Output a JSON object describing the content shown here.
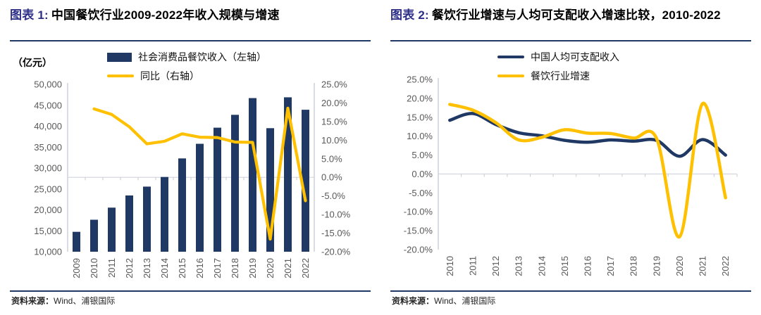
{
  "colors": {
    "navy": "#1F3864",
    "yellow": "#FFC000",
    "title_accent": "#2D2E87",
    "axis_text": "#595959",
    "gridline": "#D6D9E0",
    "axis_line": "#C4C8D4",
    "rule": "#1F3864"
  },
  "figure1": {
    "label": "图表 1:",
    "title": "中国餐饮行业2009-2022年收入规模与增速",
    "unit": "（亿元）",
    "legend_bar": "社会消费品餐饮收入（左轴）",
    "legend_line": "同比（右轴）",
    "source_prefix": "资料来源：",
    "source": "Wind、浦银国际"
  },
  "figure2": {
    "label": "图表 2:",
    "title": "餐饮行业增速与人均可支配收入增速比较，2010-2022",
    "legend_line1": "中国人均可支配收入",
    "legend_line2": "餐饮行业增速",
    "source_prefix": "资料来源：",
    "source": "Wind、浦银国际"
  },
  "chart_data": [
    {
      "type": "bar",
      "title": "中国餐饮行业2009-2022年收入规模与增速",
      "categories": [
        "2009",
        "2010",
        "2011",
        "2012",
        "2013",
        "2014",
        "2015",
        "2016",
        "2017",
        "2018",
        "2019",
        "2020",
        "2021",
        "2022"
      ],
      "series": [
        {
          "name": "社会消费品餐饮收入（左轴）",
          "type": "bar",
          "axis": "left",
          "color": "#1F3864",
          "values": [
            14750,
            17640,
            20540,
            23450,
            25570,
            27860,
            32310,
            35800,
            39640,
            42720,
            46720,
            39530,
            46900,
            43940
          ]
        },
        {
          "name": "同比（右轴）",
          "type": "line",
          "axis": "right",
          "color": "#FFC000",
          "start_category": "2010",
          "values": [
            18.4,
            16.9,
            13.6,
            9.0,
            9.7,
            11.7,
            10.8,
            10.7,
            9.5,
            9.4,
            -16.6,
            18.6,
            -6.3
          ]
        }
      ],
      "left_axis": {
        "label": "（亿元）",
        "min": 10000,
        "max": 50000,
        "step": 5000,
        "ticks": [
          "50,000",
          "45,000",
          "40,000",
          "35,000",
          "30,000",
          "25,000",
          "20,000",
          "15,000",
          "10,000"
        ]
      },
      "right_axis": {
        "min": -20,
        "max": 25,
        "step": 5,
        "ticks": [
          "25.0%",
          "20.0%",
          "15.0%",
          "10.0%",
          "5.0%",
          "0.0%",
          "-5.0%",
          "-10.0%",
          "-15.0%",
          "-20.0%"
        ]
      },
      "gridline_at": 0,
      "legend_position": "top"
    },
    {
      "type": "line",
      "title": "餐饮行业增速与人均可支配收入增速比较，2010-2022",
      "smooth": true,
      "categories": [
        "2010",
        "2011",
        "2012",
        "2013",
        "2014",
        "2015",
        "2016",
        "2017",
        "2018",
        "2019",
        "2020",
        "2021",
        "2022"
      ],
      "series": [
        {
          "name": "中国人均可支配收入",
          "color": "#1F3864",
          "values": [
            14.2,
            16.0,
            13.1,
            10.9,
            10.1,
            8.9,
            8.4,
            9.0,
            8.7,
            8.9,
            4.7,
            9.1,
            5.0
          ]
        },
        {
          "name": "餐饮行业增速",
          "color": "#FFC000",
          "values": [
            18.4,
            16.9,
            13.6,
            9.0,
            9.7,
            11.7,
            10.8,
            10.7,
            9.5,
            9.4,
            -16.6,
            18.6,
            -6.3
          ]
        }
      ],
      "y_axis": {
        "min": -20,
        "max": 25,
        "step": 5,
        "ticks": [
          "25.0%",
          "20.0%",
          "15.0%",
          "10.0%",
          "5.0%",
          "0.0%",
          "-5.0%",
          "-10.0%",
          "-15.0%",
          "-20.0%"
        ]
      },
      "gridline_at": 0,
      "legend_position": "top"
    }
  ]
}
